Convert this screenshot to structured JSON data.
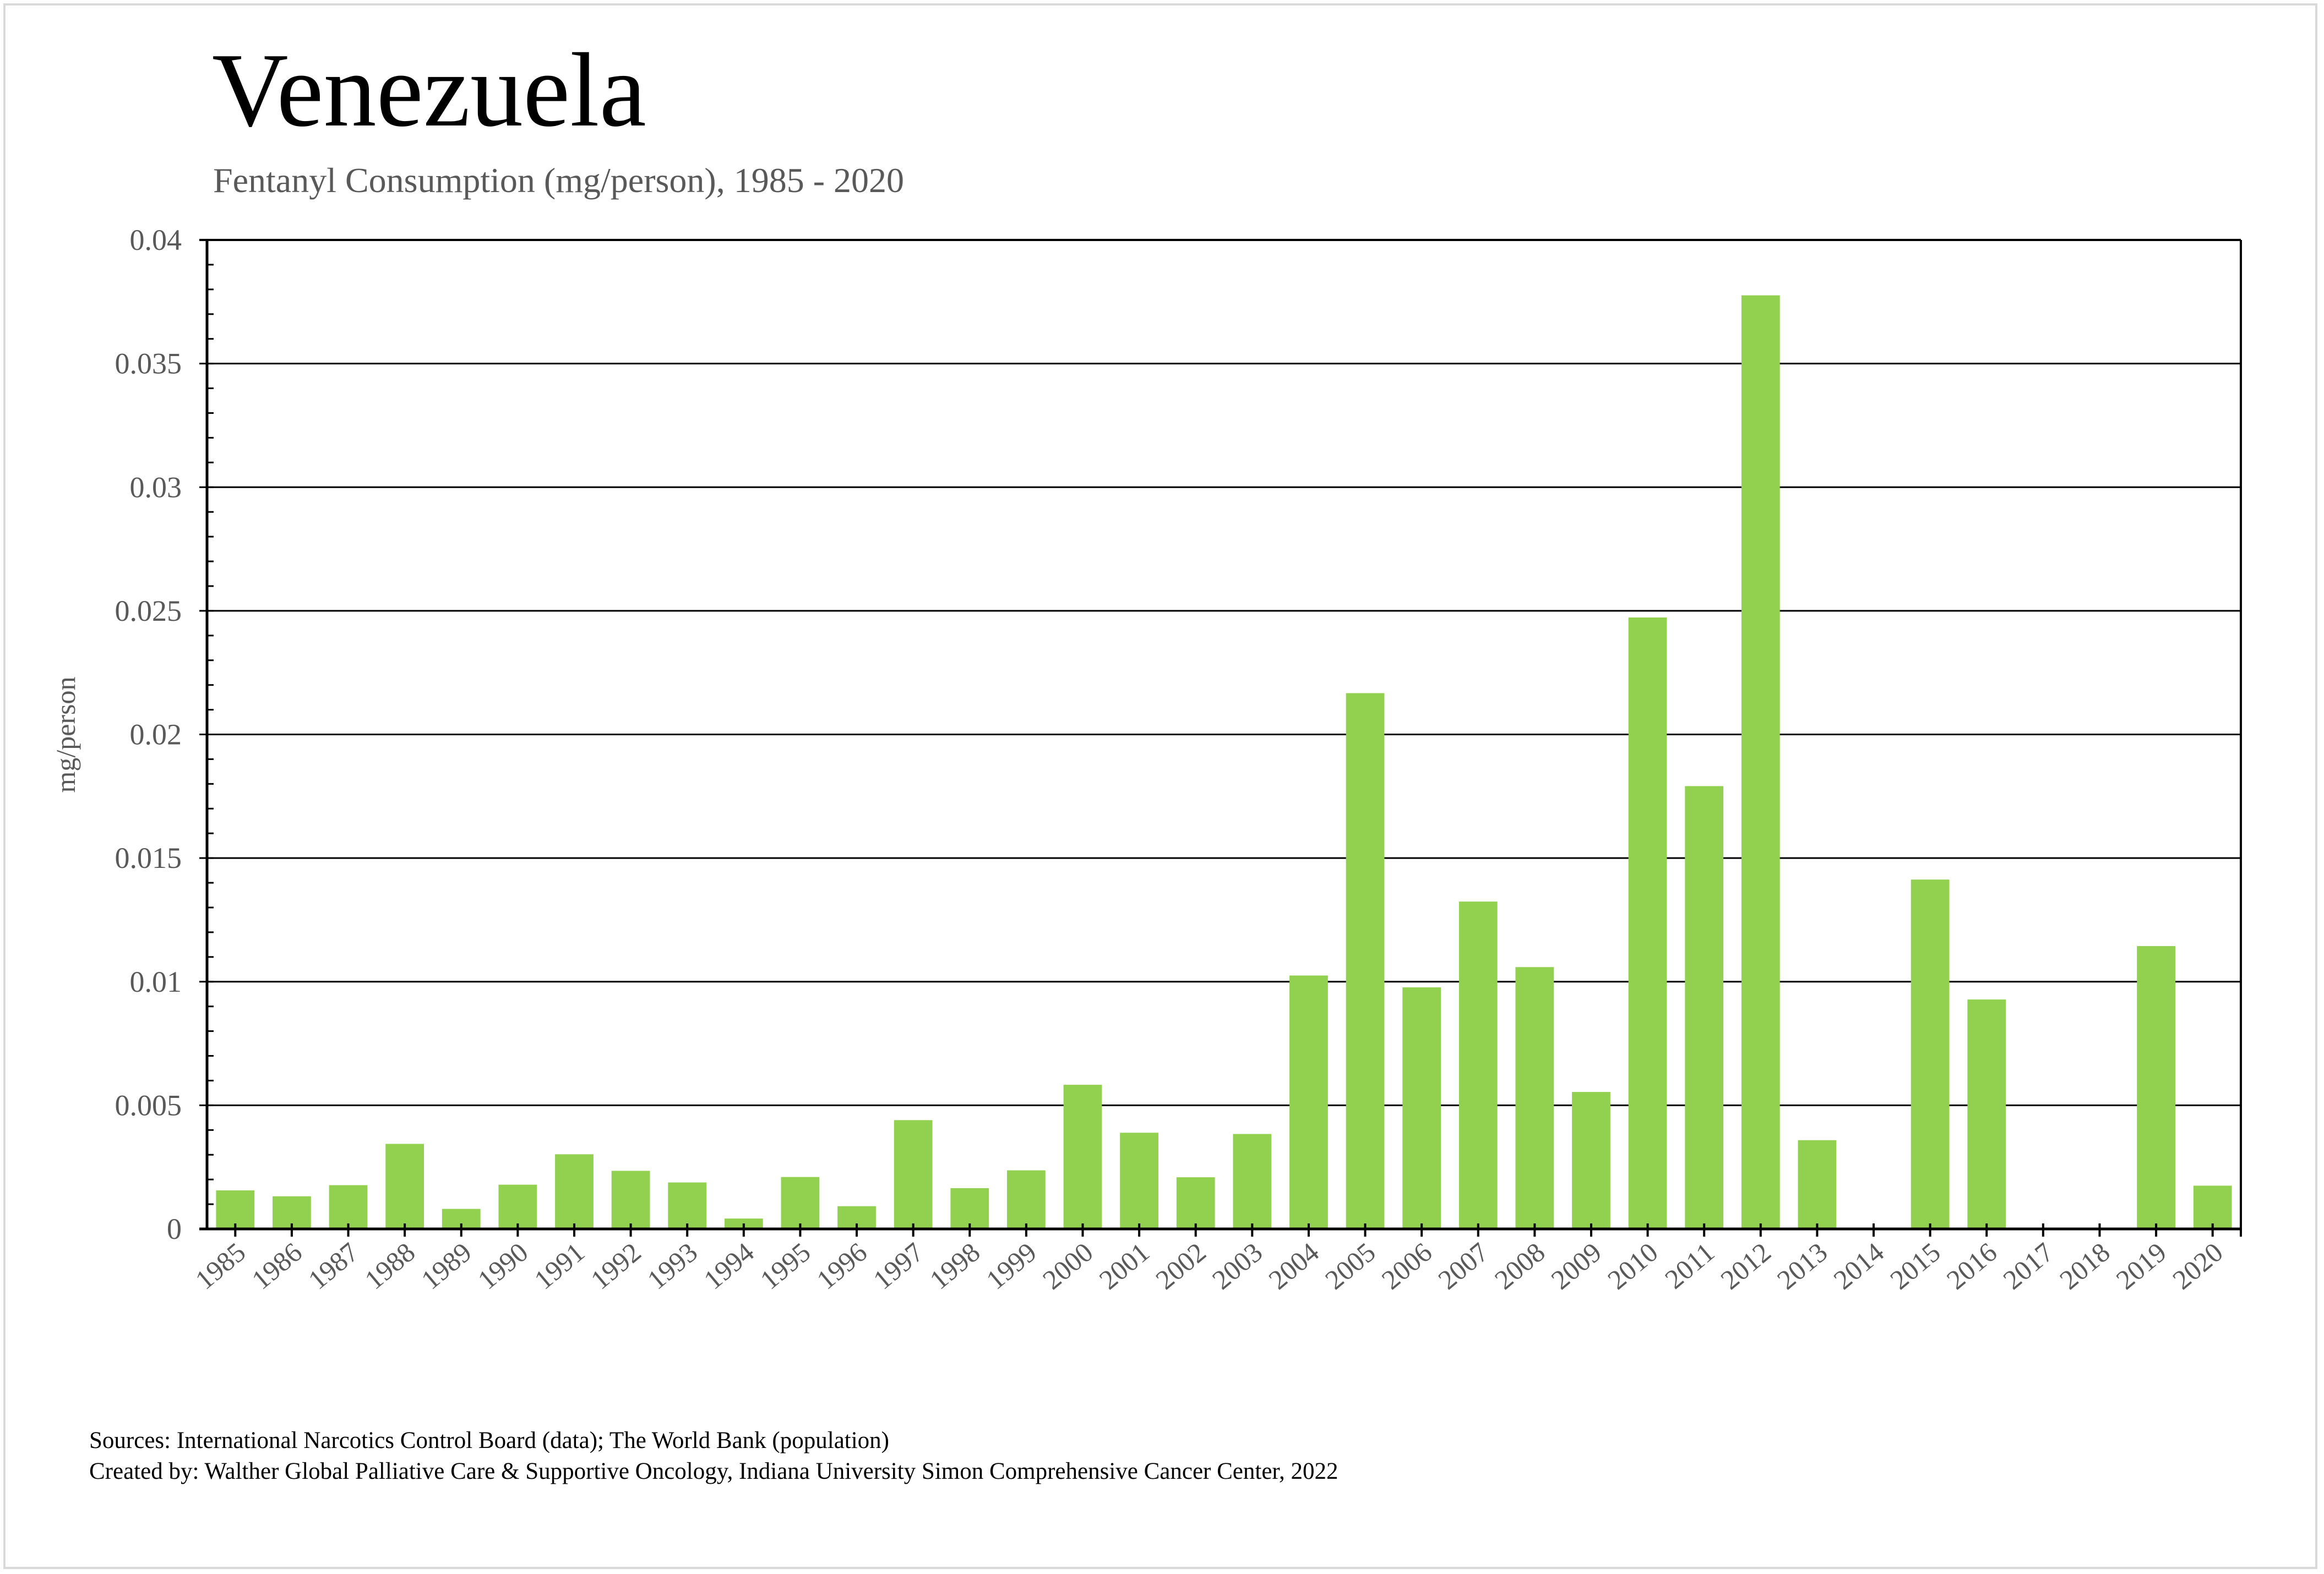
{
  "header": {
    "title": "Venezuela",
    "subtitle": "Fentanyl Consumption (mg/person), 1985 - 2020"
  },
  "footer": {
    "sources": "Sources: International Narcotics Control Board (data); The World Bank (population)",
    "created_by": "Created by: Walther Global Palliative Care & Supportive Oncology, Indiana University Simon Comprehensive Cancer Center, 2022"
  },
  "colors": {
    "bar": "#92D050",
    "axis": "#000000",
    "gridline": "#000000",
    "label": "#595959"
  },
  "chart_data": {
    "type": "bar",
    "title": "Venezuela",
    "subtitle": "Fentanyl Consumption (mg/person), 1985 - 2020",
    "xlabel": "",
    "ylabel": "mg/person",
    "ylim": [
      0,
      0.04
    ],
    "yticks": [
      0,
      0.005,
      0.01,
      0.015,
      0.02,
      0.025,
      0.03,
      0.035,
      0.04
    ],
    "ytick_labels": [
      "0",
      "0.005",
      "0.01",
      "0.015",
      "0.02",
      "0.025",
      "0.03",
      "0.035",
      "0.04"
    ],
    "minor_tick_step": 0.001,
    "grid": true,
    "legend": "none",
    "categories": [
      "1985",
      "1986",
      "1987",
      "1988",
      "1989",
      "1990",
      "1991",
      "1992",
      "1993",
      "1994",
      "1995",
      "1996",
      "1997",
      "1998",
      "1999",
      "2000",
      "2001",
      "2002",
      "2003",
      "2004",
      "2005",
      "2006",
      "2007",
      "2008",
      "2009",
      "2010",
      "2011",
      "2012",
      "2013",
      "2014",
      "2015",
      "2016",
      "2017",
      "2018",
      "2019",
      "2020"
    ],
    "series": [
      {
        "name": "Fentanyl Consumption (mg/person)",
        "values": [
          0.00156,
          0.00132,
          0.00177,
          0.00344,
          0.00081,
          0.00179,
          0.00302,
          0.00235,
          0.00188,
          0.00042,
          0.0021,
          0.00092,
          0.0044,
          0.00165,
          0.00237,
          0.00583,
          0.00389,
          0.00209,
          0.00384,
          0.01025,
          0.02167,
          0.00977,
          0.01324,
          0.01059,
          0.00554,
          0.02473,
          0.01791,
          0.03776,
          0.00359,
          0,
          0.01413,
          0.00928,
          3e-05,
          0,
          0.01144,
          0.00175
        ]
      }
    ]
  }
}
